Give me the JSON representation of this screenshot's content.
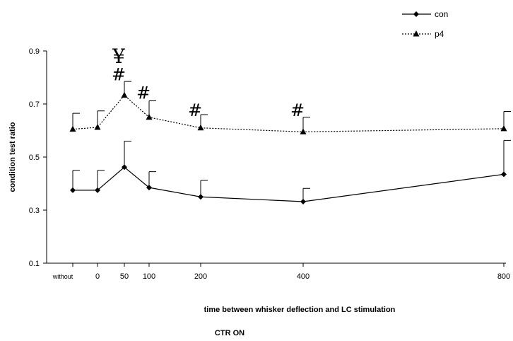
{
  "chart_data": {
    "type": "line",
    "title": "",
    "xlabel": "time between whisker deflection and LC stimulation",
    "ylabel": "condition test ratio",
    "footer": "CTR ON",
    "ylim": [
      0.1,
      0.9
    ],
    "yticks": [
      "0.1",
      "0.3",
      "0.5",
      "0.7",
      "0.9"
    ],
    "categories": [
      "without",
      "0",
      "50",
      "100",
      "200",
      "400",
      "800"
    ],
    "x": [
      -20,
      0,
      50,
      100,
      200,
      400,
      800
    ],
    "legend_position": "top-right",
    "series": [
      {
        "name": "con",
        "style": "solid",
        "marker": "diamond",
        "values": [
          0.375,
          0.375,
          0.462,
          0.385,
          0.35,
          0.332,
          0.435
        ],
        "errors": [
          0.075,
          0.075,
          0.098,
          0.06,
          0.062,
          0.05,
          0.128
        ]
      },
      {
        "name": "p4",
        "style": "dotted",
        "marker": "triangle",
        "values": [
          0.605,
          0.612,
          0.733,
          0.65,
          0.61,
          0.595,
          0.607
        ],
        "errors": [
          0.06,
          0.062,
          0.052,
          0.062,
          0.05,
          0.055,
          0.065
        ]
      }
    ],
    "annotations": [
      {
        "text": "¥",
        "x": 50,
        "y": 0.855,
        "kind": "yen"
      },
      {
        "text": "#",
        "x": 50,
        "y": 0.79
      },
      {
        "text": "#",
        "x": 100,
        "y": 0.72
      },
      {
        "text": "#",
        "x": 200,
        "y": 0.655
      },
      {
        "text": "#",
        "x": 400,
        "y": 0.655
      }
    ]
  }
}
